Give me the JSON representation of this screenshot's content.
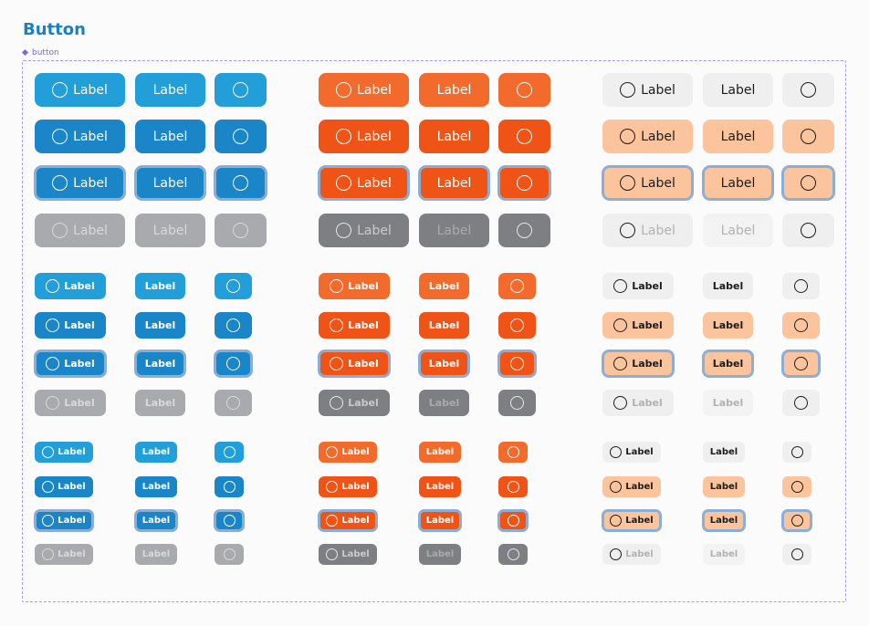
{
  "page": {
    "title": "Button",
    "frame_label": "button"
  },
  "button_label": "Label",
  "colors": {
    "primary_blue": "#229fd9",
    "primary_blue_pressed": "#1a86c8",
    "primary_orange": "#f36b2c",
    "primary_orange_pressed": "#ef5316",
    "neutral_light": "#f0efef",
    "peach": "#fbc49c",
    "disabled_grey": "#a9aaad",
    "disabled_dark": "#7e7f83",
    "focus_ring": "#8aaed6",
    "title": "#1a82c4",
    "frame": "#a996ff"
  },
  "sizes": [
    "large",
    "medium",
    "small"
  ],
  "color_groups": [
    "blue",
    "orange",
    "neutral"
  ],
  "states": [
    "default",
    "pressed",
    "focused",
    "disabled"
  ],
  "variants": [
    "icon-label",
    "label-only",
    "icon-only"
  ]
}
